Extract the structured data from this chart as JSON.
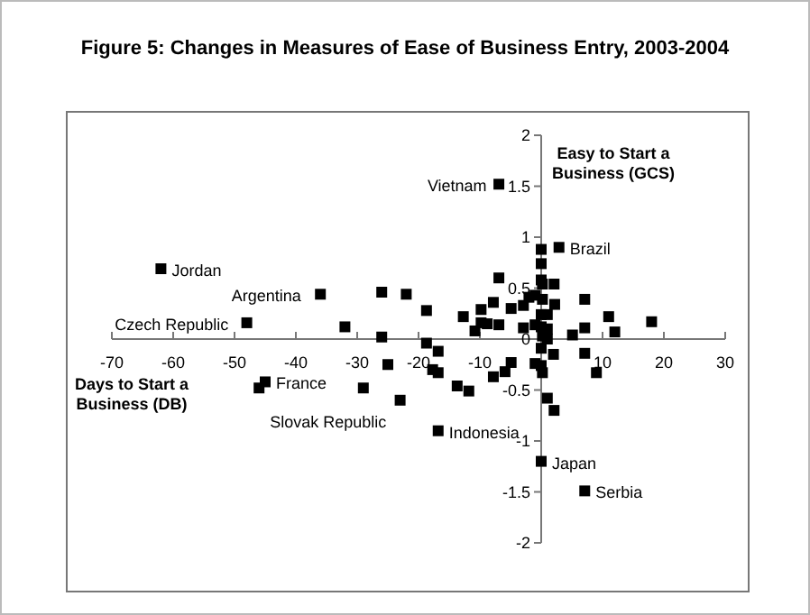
{
  "chart_data": {
    "type": "scatter",
    "title": "Figure 5:  Changes in Measures of Ease of Business Entry, 2003-2004",
    "xlabel": "Days to Start a Business (DB)",
    "ylabel": "Easy to Start a Business (GCS)",
    "xlim": [
      -70,
      30
    ],
    "ylim": [
      -2,
      2
    ],
    "xticks": [
      -70,
      -60,
      -50,
      -40,
      -30,
      -20,
      -10,
      10,
      20,
      30
    ],
    "yticks": [
      -2,
      -1.5,
      -1,
      -0.5,
      0,
      0.5,
      1,
      1.5,
      2
    ],
    "marker": "square",
    "grid": false,
    "series": [
      {
        "color": "#000000",
        "x": [
          -62,
          -36,
          -26,
          -22,
          -48,
          -32,
          -26,
          -25,
          -46,
          -45,
          -29,
          -23,
          -6.9,
          2.9,
          0,
          0,
          -6.9,
          0,
          0.2,
          2.1,
          -1,
          -2,
          0.2,
          -7.8,
          2.2,
          7.1,
          -18.7,
          -9.8,
          -4.9,
          -2.9,
          -12.7,
          -9.8,
          -8.8,
          -6.9,
          -10.8,
          -2.9,
          -1,
          0,
          1,
          0,
          1,
          0.2,
          1,
          5.1,
          7.1,
          11,
          12,
          18,
          -18.7,
          -16.8,
          -17.7,
          -16.8,
          -4.9,
          -5.9,
          -7.8,
          -13.7,
          -11.8,
          -1,
          0,
          0.2,
          2,
          7.1,
          9,
          1,
          2.1,
          0,
          -16.8,
          0,
          7.1
        ],
        "values": [
          0.69,
          0.44,
          0.46,
          0.44,
          0.16,
          0.12,
          0.02,
          -0.25,
          -0.48,
          -0.42,
          -0.48,
          -0.6,
          1.52,
          0.9,
          0.88,
          0.74,
          0.6,
          0.58,
          0.54,
          0.54,
          0.43,
          0.41,
          0.39,
          0.36,
          0.34,
          0.39,
          0.28,
          0.29,
          0.3,
          0.33,
          0.22,
          0.16,
          0.15,
          0.14,
          0.08,
          0.11,
          0.14,
          0.24,
          0.24,
          0.12,
          0.1,
          0.03,
          0,
          0.04,
          0.11,
          0.22,
          0.07,
          0.17,
          -0.04,
          -0.12,
          -0.3,
          -0.33,
          -0.23,
          -0.32,
          -0.37,
          -0.46,
          -0.51,
          -0.24,
          -0.26,
          -0.33,
          -0.15,
          -0.14,
          -0.33,
          -0.58,
          -0.7,
          -0.09,
          -0.9,
          -1.2,
          -1.49
        ]
      }
    ],
    "annotations": [
      {
        "text": "Jordan",
        "x": -62,
        "y": 0.69
      },
      {
        "text": "Argentina",
        "x": -36,
        "y": 0.44
      },
      {
        "text": "Czech Republic",
        "x": -48,
        "y": 0.16
      },
      {
        "text": "France",
        "x": -45,
        "y": -0.42
      },
      {
        "text": "Slovak Republic",
        "x": -46,
        "y": -0.48
      },
      {
        "text": "Vietnam",
        "x": -6.9,
        "y": 1.52
      },
      {
        "text": "Brazil",
        "x": 2.9,
        "y": 0.9
      },
      {
        "text": "Indonesia",
        "x": -16.8,
        "y": -0.9
      },
      {
        "text": "Japan",
        "x": 0,
        "y": -1.2
      },
      {
        "text": "Serbia",
        "x": 7.1,
        "y": -1.49
      }
    ]
  }
}
